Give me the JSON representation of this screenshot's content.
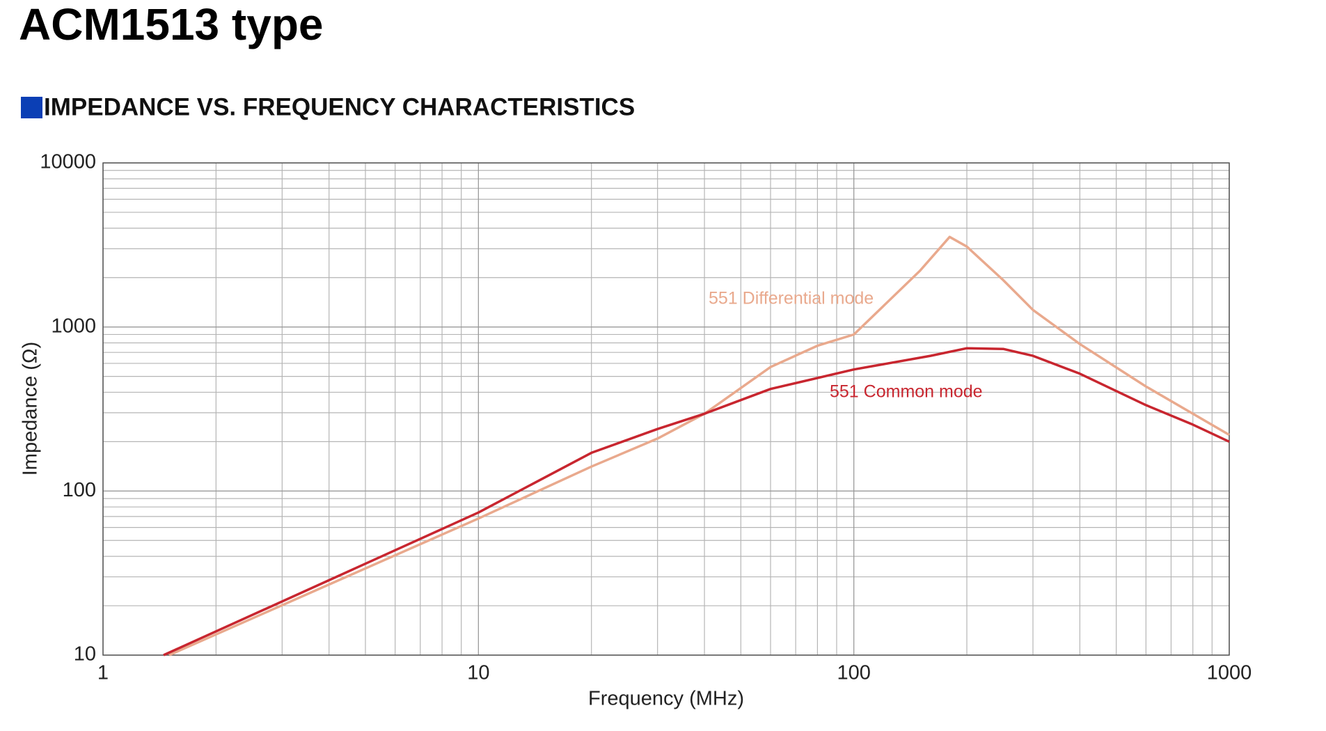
{
  "header": {
    "title": "ACM1513 type",
    "subtitle": "IMPEDANCE VS. FREQUENCY CHARACTERISTICS"
  },
  "chart_data": {
    "type": "line",
    "x_label": "Frequency (MHz)",
    "y_label": "Impedance (Ω)",
    "xlim": [
      1,
      1000
    ],
    "ylim": [
      10,
      10000
    ],
    "xticks": [
      1,
      10,
      100,
      1000
    ],
    "yticks": [
      10,
      100,
      1000,
      10000
    ],
    "log_x": true,
    "log_y": true,
    "grid": true,
    "series": [
      {
        "name": "551 Differential mode",
        "color": "#e9a98d",
        "x": [
          1.5,
          10,
          20,
          30,
          40,
          60,
          80,
          100,
          150,
          180,
          200,
          250,
          300,
          400,
          600,
          1000
        ],
        "values": [
          10,
          68,
          141,
          209,
          296,
          570,
          769,
          900,
          2200,
          3540,
          3090,
          1930,
          1270,
          787,
          434,
          220
        ]
      },
      {
        "name": "551 Common mode",
        "color": "#c8262f",
        "x": [
          1.45,
          10,
          20,
          30,
          40,
          60,
          100,
          160,
          200,
          250,
          300,
          400,
          600,
          800,
          1000
        ],
        "values": [
          10,
          74,
          171,
          239,
          296,
          419,
          551,
          667,
          742,
          735,
          667,
          519,
          334,
          254,
          200
        ]
      }
    ]
  }
}
